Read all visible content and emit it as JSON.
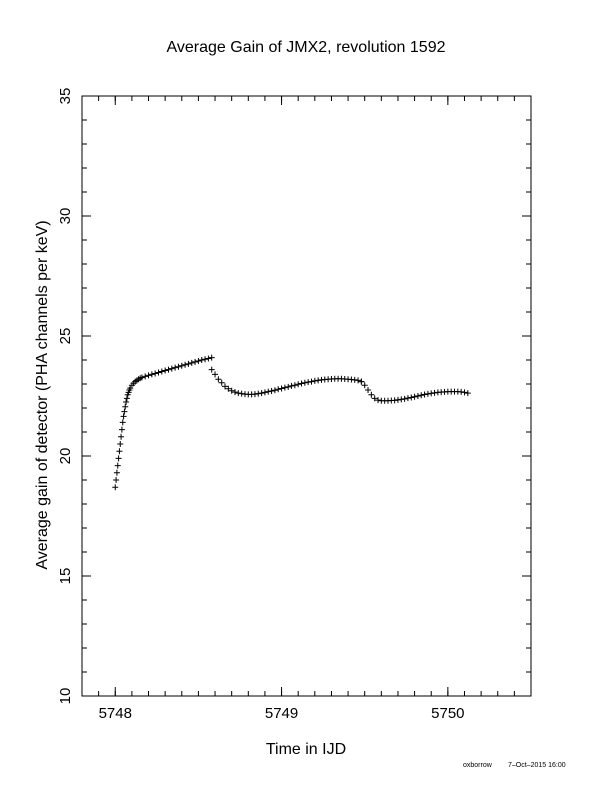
{
  "chart_data": {
    "type": "scatter",
    "title": "Average Gain of JMX2, revolution 1592",
    "xlabel": "Time in IJD",
    "ylabel": "Average gain of detector (PHA channels per keV)",
    "xlim": [
      5747.8,
      5750.5
    ],
    "ylim": [
      10,
      35
    ],
    "x_ticks": [
      5748,
      5749,
      5750
    ],
    "x_tick_labels": [
      "5748",
      "5749",
      "5750"
    ],
    "y_ticks": [
      10,
      15,
      20,
      25,
      30,
      35
    ],
    "y_tick_labels": [
      "10",
      "15",
      "20",
      "25",
      "30",
      "35"
    ],
    "grid": false,
    "marker": "plus",
    "marker_color": "#000000",
    "series": [
      {
        "x": [
          5748.0,
          5748.005,
          5748.01,
          5748.015,
          5748.02,
          5748.025,
          5748.03,
          5748.035,
          5748.04,
          5748.045,
          5748.05,
          5748.055,
          5748.06,
          5748.065,
          5748.07,
          5748.075,
          5748.08,
          5748.085,
          5748.09,
          5748.1,
          5748.11,
          5748.12,
          5748.13,
          5748.14,
          5748.15,
          5748.16,
          5748.18,
          5748.2,
          5748.22,
          5748.24,
          5748.26,
          5748.28,
          5748.3,
          5748.32,
          5748.34,
          5748.36,
          5748.38,
          5748.4,
          5748.42,
          5748.44,
          5748.46,
          5748.48,
          5748.5,
          5748.52,
          5748.54,
          5748.56,
          5748.58
        ],
        "y": [
          18.7,
          19.0,
          19.3,
          19.6,
          19.9,
          20.2,
          20.5,
          20.8,
          21.1,
          21.4,
          21.65,
          21.85,
          22.05,
          22.25,
          22.4,
          22.55,
          22.65,
          22.75,
          22.83,
          22.95,
          23.03,
          23.1,
          23.15,
          23.2,
          23.24,
          23.27,
          23.32,
          23.36,
          23.4,
          23.44,
          23.48,
          23.52,
          23.56,
          23.6,
          23.64,
          23.68,
          23.72,
          23.76,
          23.8,
          23.84,
          23.88,
          23.92,
          23.96,
          24.0,
          24.03,
          24.06,
          24.1
        ]
      },
      {
        "x": [
          5748.58,
          5748.6,
          5748.62,
          5748.64,
          5748.66,
          5748.68,
          5748.7,
          5748.72,
          5748.74,
          5748.76,
          5748.78,
          5748.8,
          5748.82,
          5748.84,
          5748.86,
          5748.88,
          5748.9,
          5748.92,
          5748.94,
          5748.96,
          5748.98,
          5749.0,
          5749.02,
          5749.04,
          5749.06,
          5749.08,
          5749.1,
          5749.12,
          5749.14,
          5749.16,
          5749.18,
          5749.2,
          5749.22,
          5749.24,
          5749.26,
          5749.28,
          5749.3,
          5749.32,
          5749.34,
          5749.36,
          5749.38,
          5749.4,
          5749.42,
          5749.44,
          5749.46,
          5749.48
        ],
        "y": [
          23.6,
          23.4,
          23.2,
          23.05,
          22.9,
          22.8,
          22.72,
          22.66,
          22.62,
          22.6,
          22.58,
          22.57,
          22.57,
          22.58,
          22.6,
          22.62,
          22.65,
          22.68,
          22.71,
          22.74,
          22.78,
          22.81,
          22.85,
          22.88,
          22.92,
          22.95,
          22.99,
          23.02,
          23.05,
          23.08,
          23.1,
          23.13,
          23.15,
          23.17,
          23.19,
          23.2,
          23.21,
          23.22,
          23.22,
          23.22,
          23.21,
          23.2,
          23.19,
          23.17,
          23.15,
          23.1
        ]
      },
      {
        "x": [
          5749.48,
          5749.5,
          5749.52,
          5749.54,
          5749.56,
          5749.58,
          5749.6,
          5749.62,
          5749.64,
          5749.66,
          5749.68,
          5749.7,
          5749.72,
          5749.74,
          5749.76,
          5749.78,
          5749.8,
          5749.82,
          5749.84,
          5749.86,
          5749.88,
          5749.9,
          5749.92,
          5749.94,
          5749.96,
          5749.98,
          5750.0,
          5750.02,
          5750.04,
          5750.06,
          5750.08,
          5750.1,
          5750.12
        ],
        "y": [
          23.1,
          22.95,
          22.75,
          22.55,
          22.4,
          22.33,
          22.3,
          22.3,
          22.3,
          22.31,
          22.32,
          22.34,
          22.36,
          22.38,
          22.41,
          22.44,
          22.47,
          22.5,
          22.53,
          22.56,
          22.59,
          22.61,
          22.63,
          22.65,
          22.66,
          22.67,
          22.68,
          22.68,
          22.68,
          22.68,
          22.67,
          22.65,
          22.62
        ]
      }
    ]
  },
  "footer": {
    "author": "oxborrow",
    "timestamp": "7–Oct–2015 16:00"
  }
}
